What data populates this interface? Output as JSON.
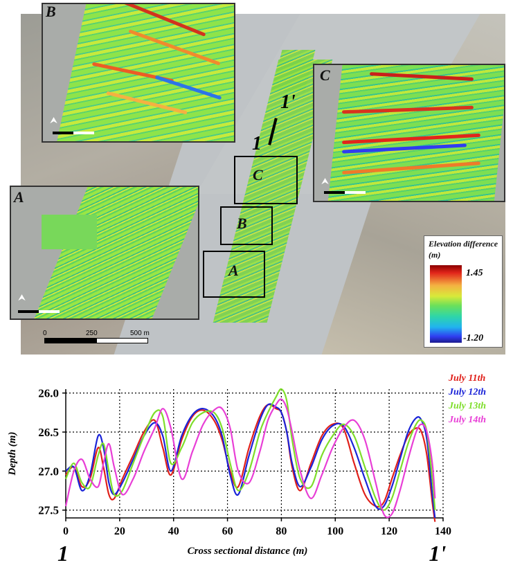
{
  "map": {
    "insets": [
      {
        "id": "B",
        "label": "B"
      },
      {
        "id": "C",
        "label": "C"
      },
      {
        "id": "A",
        "label": "A"
      }
    ],
    "boxes": [
      "C",
      "B",
      "A"
    ],
    "section_start": "1",
    "section_end": "1'",
    "scale": {
      "zero": "0",
      "mid": "250",
      "end": "500 m"
    },
    "north_icon": "north-arrow-icon",
    "legend": {
      "title": "Elevation difference (m)",
      "max": "1.45",
      "min": "-1.20",
      "colors": [
        "#8b0000",
        "#e2261b",
        "#f4b142",
        "#d8ea3a",
        "#6ce05a",
        "#2ed6a8",
        "#21b3ef",
        "#2f3df0",
        "#1c1a8e"
      ]
    }
  },
  "chart_data": {
    "type": "line",
    "xlabel": "Cross sectional distance (m)",
    "ylabel": "Depth (m)",
    "xlim": [
      0,
      140
    ],
    "ylim": [
      27.6,
      25.95
    ],
    "y_inverted": true,
    "xticks": [
      0,
      20,
      40,
      60,
      80,
      100,
      120,
      140
    ],
    "yticks": [
      26.0,
      26.5,
      27.0,
      27.5
    ],
    "ytick_labels": [
      "26.0",
      "26.5",
      "27.0",
      "27.5"
    ],
    "grid": true,
    "left_label": "1",
    "right_label": "1'",
    "legend_position": "right",
    "series": [
      {
        "name": "July 11th",
        "color": "#e0201a",
        "x": [
          0,
          3,
          6,
          9,
          12,
          14,
          16,
          18,
          21,
          25,
          29,
          33,
          36,
          39,
          43,
          47,
          51,
          55,
          58,
          61,
          64,
          68,
          72,
          75,
          78,
          80,
          82,
          84,
          87,
          91,
          95,
          99,
          103,
          107,
          111,
          115,
          118,
          121,
          124,
          127,
          130,
          132,
          134,
          136,
          137
        ],
        "y": [
          27.05,
          26.95,
          27.2,
          27.1,
          26.7,
          26.95,
          27.3,
          27.35,
          27.1,
          26.8,
          26.5,
          26.35,
          26.7,
          27.05,
          26.6,
          26.3,
          26.22,
          26.35,
          26.6,
          27.0,
          27.2,
          26.7,
          26.3,
          26.15,
          26.2,
          26.25,
          26.5,
          26.95,
          27.25,
          26.9,
          26.55,
          26.4,
          26.45,
          26.9,
          27.3,
          27.45,
          27.4,
          27.1,
          26.8,
          26.55,
          26.45,
          26.5,
          26.8,
          27.4,
          27.65
        ]
      },
      {
        "name": "July 12th",
        "color": "#1a23d8",
        "x": [
          0,
          3,
          6,
          9,
          12,
          14,
          16,
          18,
          21,
          25,
          29,
          33,
          36,
          39,
          43,
          47,
          51,
          55,
          58,
          61,
          64,
          68,
          72,
          75,
          78,
          80,
          82,
          84,
          87,
          91,
          95,
          99,
          103,
          107,
          111,
          115,
          118,
          121,
          124,
          127,
          130,
          132,
          134,
          136,
          137
        ],
        "y": [
          27.0,
          26.95,
          27.25,
          27.05,
          26.55,
          26.7,
          27.15,
          27.3,
          27.15,
          26.85,
          26.55,
          26.38,
          26.55,
          27.0,
          26.55,
          26.28,
          26.2,
          26.3,
          26.55,
          27.05,
          27.3,
          26.8,
          26.35,
          26.15,
          26.18,
          26.25,
          26.5,
          26.9,
          27.2,
          26.95,
          26.6,
          26.42,
          26.42,
          26.7,
          27.1,
          27.45,
          27.45,
          27.2,
          26.85,
          26.5,
          26.32,
          26.35,
          26.6,
          27.3,
          27.6
        ]
      },
      {
        "name": "July 13th",
        "color": "#7ede2a",
        "x": [
          0,
          3,
          6,
          9,
          12,
          14,
          16,
          18,
          21,
          25,
          29,
          33,
          36,
          39,
          43,
          47,
          51,
          55,
          58,
          61,
          64,
          68,
          72,
          75,
          78,
          80,
          82,
          84,
          87,
          91,
          95,
          99,
          103,
          107,
          111,
          115,
          118,
          121,
          124,
          127,
          130,
          132,
          134,
          136,
          137
        ],
        "y": [
          27.1,
          26.9,
          27.15,
          27.2,
          26.8,
          26.65,
          27.0,
          27.3,
          27.25,
          26.9,
          26.55,
          26.25,
          26.3,
          26.9,
          26.7,
          26.38,
          26.25,
          26.25,
          26.45,
          26.9,
          27.25,
          27.0,
          26.5,
          26.25,
          26.05,
          25.95,
          26.1,
          26.6,
          27.1,
          27.2,
          26.8,
          26.55,
          26.4,
          26.55,
          26.95,
          27.35,
          27.5,
          27.35,
          27.0,
          26.65,
          26.4,
          26.35,
          26.5,
          27.1,
          27.5
        ]
      },
      {
        "name": "July 14th",
        "color": "#e83ed6",
        "x": [
          0,
          3,
          6,
          9,
          12,
          14,
          16,
          18,
          21,
          25,
          29,
          33,
          36,
          39,
          43,
          47,
          51,
          55,
          58,
          61,
          64,
          68,
          72,
          75,
          78,
          80,
          82,
          84,
          87,
          91,
          95,
          99,
          103,
          107,
          111,
          115,
          118,
          121,
          124,
          127,
          130,
          132,
          134,
          136,
          137
        ],
        "y": [
          27.45,
          27.0,
          26.85,
          27.1,
          27.2,
          26.9,
          26.65,
          26.95,
          27.3,
          27.1,
          26.75,
          26.45,
          26.2,
          26.45,
          27.1,
          26.75,
          26.4,
          26.22,
          26.2,
          26.45,
          27.0,
          27.15,
          26.75,
          26.35,
          26.15,
          26.08,
          26.2,
          26.5,
          27.0,
          27.35,
          27.05,
          26.7,
          26.45,
          26.35,
          26.6,
          27.15,
          27.55,
          27.55,
          27.25,
          26.85,
          26.5,
          26.4,
          26.5,
          26.9,
          27.35
        ]
      }
    ]
  }
}
